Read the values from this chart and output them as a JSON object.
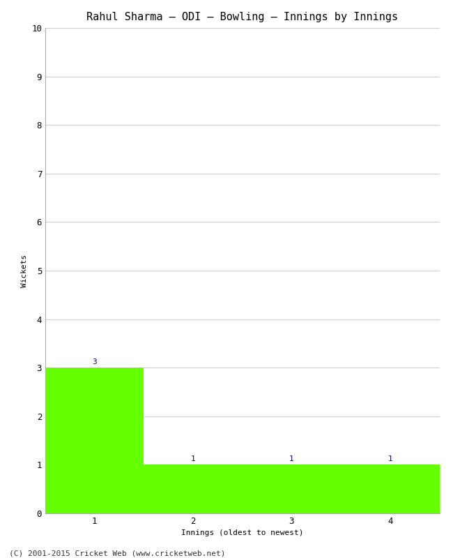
{
  "title": "Rahul Sharma – ODI – Bowling – Innings by Innings",
  "xlabel": "Innings (oldest to newest)",
  "ylabel": "Wickets",
  "categories": [
    1,
    2,
    3,
    4
  ],
  "values": [
    3,
    1,
    1,
    1
  ],
  "bar_color": "#66ff00",
  "bar_edge_color": "#66ff00",
  "label_color": "#000080",
  "ylim": [
    0,
    10
  ],
  "yticks": [
    0,
    1,
    2,
    3,
    4,
    5,
    6,
    7,
    8,
    9,
    10
  ],
  "xticks": [
    1,
    2,
    3,
    4
  ],
  "xlim": [
    0.5,
    4.5
  ],
  "background_color": "#ffffff",
  "grid_color": "#d0d0d0",
  "footer_text": "(C) 2001-2015 Cricket Web (www.cricketweb.net)",
  "title_fontsize": 11,
  "label_fontsize": 8,
  "tick_fontsize": 9,
  "footer_fontsize": 8,
  "bar_width": 1.0
}
